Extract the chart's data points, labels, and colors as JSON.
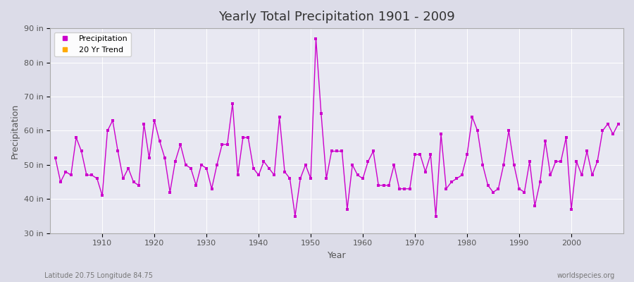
{
  "title": "Yearly Total Precipitation 1901 - 2009",
  "xlabel": "Year",
  "ylabel": "Precipitation",
  "subtitle": "Latitude 20.75 Longitude 84.75",
  "watermark": "worldspecies.org",
  "ylim": [
    30,
    90
  ],
  "yticks": [
    30,
    40,
    50,
    60,
    70,
    80,
    90
  ],
  "ytick_labels": [
    "30 in",
    "40 in",
    "50 in",
    "60 in",
    "70 in",
    "80 in",
    "90 in"
  ],
  "xlim": [
    1900,
    2010
  ],
  "line_color": "#cc00cc",
  "trend_color": "#ffaa00",
  "years": [
    1901,
    1902,
    1903,
    1904,
    1905,
    1906,
    1907,
    1908,
    1909,
    1910,
    1911,
    1912,
    1913,
    1914,
    1915,
    1916,
    1917,
    1918,
    1919,
    1920,
    1921,
    1922,
    1923,
    1924,
    1925,
    1926,
    1927,
    1928,
    1929,
    1930,
    1931,
    1932,
    1933,
    1934,
    1935,
    1936,
    1937,
    1938,
    1939,
    1940,
    1941,
    1942,
    1943,
    1944,
    1945,
    1946,
    1947,
    1948,
    1949,
    1950,
    1951,
    1952,
    1953,
    1954,
    1955,
    1956,
    1957,
    1958,
    1959,
    1960,
    1961,
    1962,
    1963,
    1964,
    1965,
    1966,
    1967,
    1968,
    1969,
    1970,
    1971,
    1972,
    1973,
    1974,
    1975,
    1976,
    1977,
    1978,
    1979,
    1980,
    1981,
    1982,
    1983,
    1984,
    1985,
    1986,
    1987,
    1988,
    1989,
    1990,
    1991,
    1992,
    1993,
    1994,
    1995,
    1996,
    1997,
    1998,
    1999,
    2000,
    2001,
    2002,
    2003,
    2004,
    2005,
    2006,
    2007,
    2008,
    2009
  ],
  "precip": [
    52,
    45,
    48,
    47,
    58,
    54,
    47,
    47,
    46,
    41,
    60,
    63,
    54,
    46,
    49,
    45,
    44,
    62,
    52,
    63,
    57,
    52,
    42,
    51,
    56,
    50,
    49,
    44,
    50,
    49,
    43,
    50,
    56,
    56,
    68,
    47,
    58,
    58,
    49,
    47,
    51,
    49,
    47,
    64,
    48,
    46,
    35,
    46,
    50,
    46,
    87,
    65,
    46,
    54,
    54,
    54,
    37,
    50,
    47,
    46,
    51,
    54,
    44,
    44,
    44,
    50,
    43,
    43,
    43,
    53,
    53,
    48,
    53,
    35,
    59,
    43,
    45,
    46,
    47,
    53,
    64,
    60,
    50,
    44,
    42,
    43,
    50,
    60,
    50,
    43,
    42,
    51,
    38,
    45,
    57,
    47,
    51,
    51,
    58,
    37,
    51,
    47,
    54,
    47,
    51,
    60,
    62,
    59,
    62
  ]
}
